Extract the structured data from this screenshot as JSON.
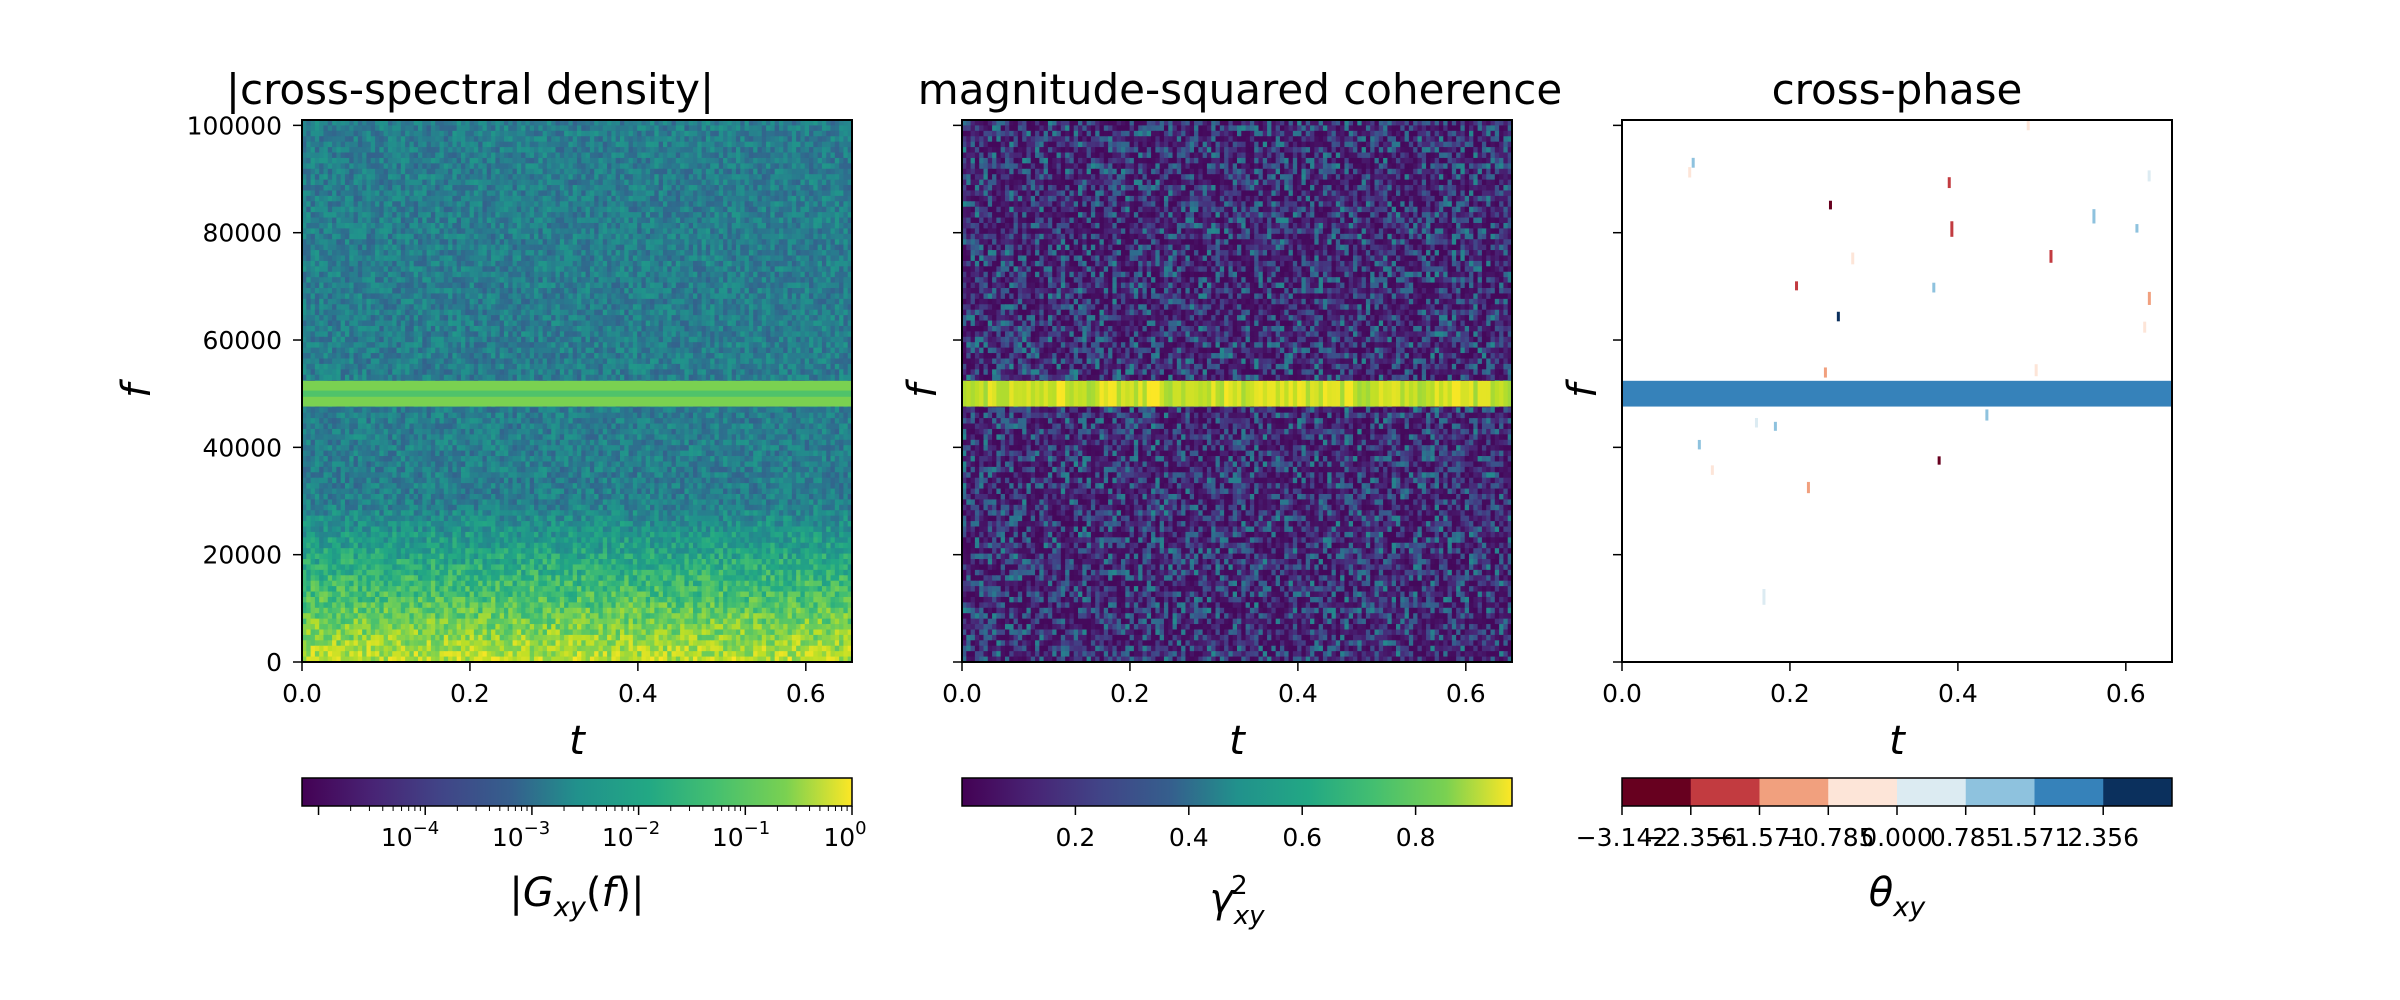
{
  "chart_data": [
    {
      "type": "heatmap",
      "title": "|cross-spectral density|",
      "xlabel": "t",
      "ylabel": "f",
      "xlim": [
        0,
        0.655
      ],
      "ylim": [
        0,
        101000
      ],
      "xticks": [
        "0.0",
        "0.2",
        "0.4",
        "0.6"
      ],
      "xtick_values": [
        0,
        0.2,
        0.4,
        0.6
      ],
      "yticks": [
        "0",
        "20000",
        "40000",
        "60000",
        "80000",
        "100000"
      ],
      "ytick_values": [
        0,
        20000,
        40000,
        60000,
        80000,
        100000
      ],
      "colormap": "viridis",
      "color_scale": "log",
      "band_center_f": 50000,
      "colorbar": {
        "label": "|G_xy(f)|",
        "tick_labels": [
          {
            "base": "10",
            "exp": "−4"
          },
          {
            "base": "10",
            "exp": "−3"
          },
          {
            "base": "10",
            "exp": "−2"
          },
          {
            "base": "10",
            "exp": "−1"
          },
          {
            "base": "10",
            "exp": "0"
          }
        ],
        "range": [
          7e-06,
          1
        ]
      }
    },
    {
      "type": "heatmap",
      "title": "magnitude-squared coherence",
      "xlabel": "t",
      "ylabel": "f",
      "xlim": [
        0,
        0.655
      ],
      "ylim": [
        0,
        101000
      ],
      "xticks": [
        "0.0",
        "0.2",
        "0.4",
        "0.6"
      ],
      "xtick_values": [
        0,
        0.2,
        0.4,
        0.6
      ],
      "ytick_values": [
        0,
        20000,
        40000,
        60000,
        80000,
        100000
      ],
      "colormap": "viridis",
      "band_center_f": 50000,
      "colorbar": {
        "label": "γ²_xy",
        "tick_labels": [
          "0.2",
          "0.4",
          "0.6",
          "0.8"
        ],
        "tick_values": [
          0.2,
          0.4,
          0.6,
          0.8
        ],
        "range": [
          0,
          0.97
        ]
      }
    },
    {
      "type": "heatmap",
      "title": "cross-phase",
      "xlabel": "t",
      "ylabel": "f",
      "xlim": [
        0,
        0.655
      ],
      "ylim": [
        0,
        101000
      ],
      "xticks": [
        "0.0",
        "0.2",
        "0.4",
        "0.6"
      ],
      "xtick_values": [
        0,
        0.2,
        0.4,
        0.6
      ],
      "ytick_values": [
        0,
        20000,
        40000,
        60000,
        80000,
        100000
      ],
      "colormap": "RdBu",
      "band_center_f": 50000,
      "band_phase": 1.571,
      "colorbar": {
        "label": "θ_xy",
        "tick_labels": [
          "−3.142",
          "−2.356",
          "−1.571",
          "−0.785",
          "0.000",
          "0.785",
          "1.571",
          "2.356"
        ],
        "tick_values": [
          -3.142,
          -2.356,
          -1.571,
          -0.785,
          0.0,
          0.785,
          1.571,
          2.356
        ],
        "range": [
          -3.142,
          3.142
        ],
        "levels": 8,
        "colors": [
          "#67001f",
          "#c23b40",
          "#f1a07e",
          "#fde5d8",
          "#dcebf2",
          "#8ec2de",
          "#3682ba",
          "#0b305d"
        ]
      }
    }
  ]
}
